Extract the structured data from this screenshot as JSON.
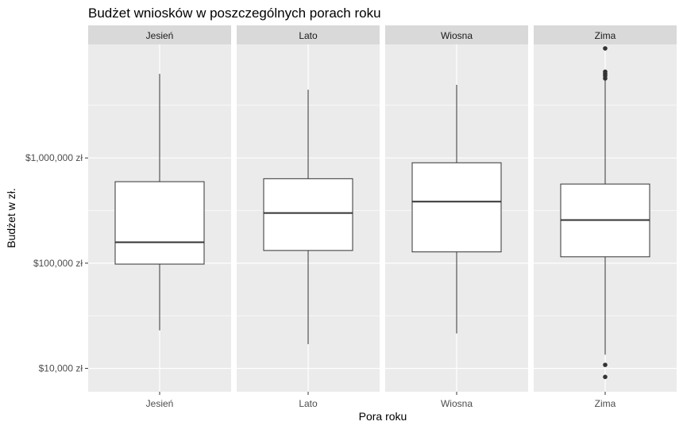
{
  "chart_data": {
    "type": "boxplot",
    "title": "Budżet wniosków w poszczególnych porach roku",
    "xlabel": "Pora roku",
    "ylabel": "Budżet w zł.",
    "y_scale": "log10",
    "ylim": [
      6000,
      12000000
    ],
    "y_ticks": [
      10000,
      100000,
      1000000
    ],
    "y_tick_labels": [
      "$10,000 zł",
      "$100,000 zł",
      "$1,000,000 zł"
    ],
    "facets": [
      {
        "label": "Jesień",
        "category": "Jesień",
        "min": 23000,
        "q1": 98000,
        "median": 158000,
        "q3": 595000,
        "max": 6300000,
        "outliers": []
      },
      {
        "label": "Lato",
        "category": "Lato",
        "min": 17000,
        "q1": 132000,
        "median": 300000,
        "q3": 635000,
        "max": 4450000,
        "outliers": []
      },
      {
        "label": "Wiosna",
        "category": "Wiosna",
        "min": 21500,
        "q1": 128000,
        "median": 385000,
        "q3": 900000,
        "max": 4950000,
        "outliers": []
      },
      {
        "label": "Zima",
        "category": "Zima",
        "min": 13500,
        "q1": 115000,
        "median": 257000,
        "q3": 565000,
        "max": 5800000,
        "outliers": [
          6600000,
          6300000,
          6050000,
          5700000,
          11000000,
          8300,
          10800
        ]
      }
    ],
    "colors": {
      "panel_bg": "#ebebeb",
      "strip_bg": "#d9d9d9",
      "grid": "#ffffff",
      "box_fill": "#ffffff",
      "line": "#333333"
    }
  }
}
